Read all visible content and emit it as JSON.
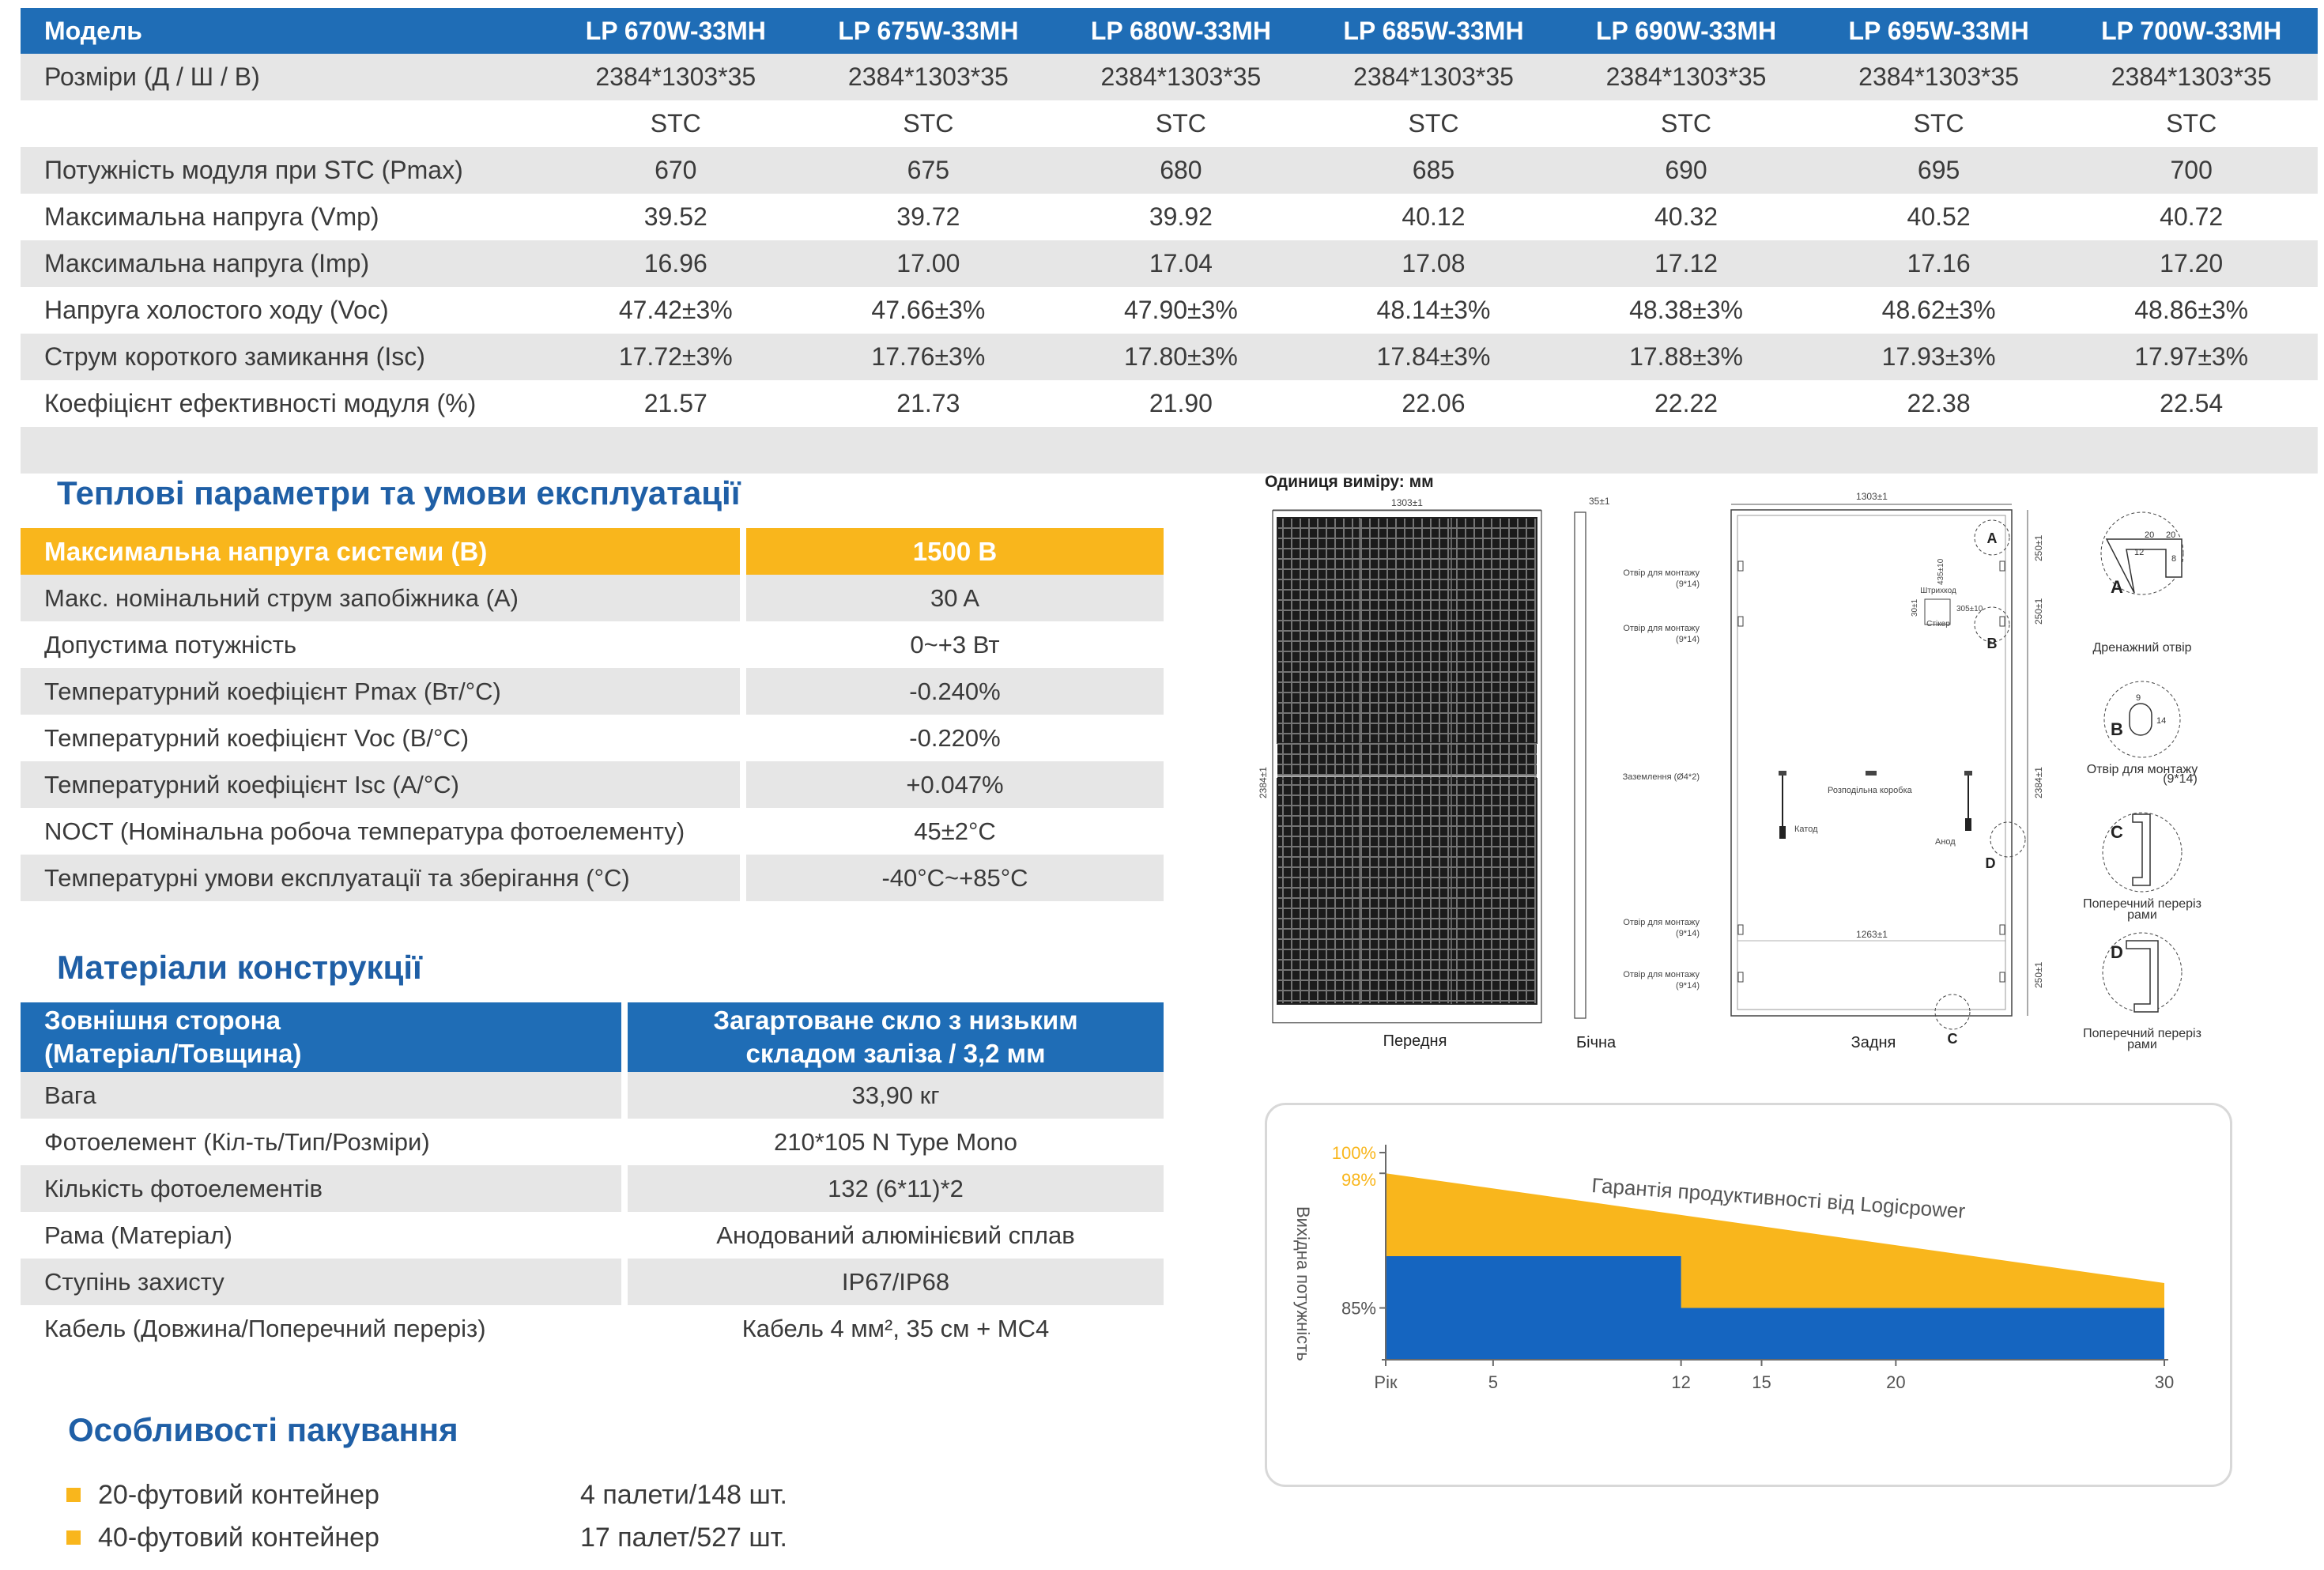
{
  "spec_table": {
    "header": [
      "Модель",
      "LP 670W-33MH",
      "LP 675W-33MH",
      "LP 680W-33MH",
      "LP 685W-33MH",
      "LP 690W-33MH",
      "LP 695W-33MH",
      "LP 700W-33MH"
    ],
    "rows": [
      [
        "Розміри (Д / Ш / В)",
        "2384*1303*35",
        "2384*1303*35",
        "2384*1303*35",
        "2384*1303*35",
        "2384*1303*35",
        "2384*1303*35",
        "2384*1303*35"
      ],
      [
        "",
        "STC",
        "STC",
        "STC",
        "STC",
        "STC",
        "STC",
        "STC"
      ],
      [
        "Потужність модуля при STC (Pmax)",
        "670",
        "675",
        "680",
        "685",
        "690",
        "695",
        "700"
      ],
      [
        "Максимальна напруга (Vmp)",
        "39.52",
        "39.72",
        "39.92",
        "40.12",
        "40.32",
        "40.52",
        "40.72"
      ],
      [
        "Максимальна напруга (Imp)",
        "16.96",
        "17.00",
        "17.04",
        "17.08",
        "17.12",
        "17.16",
        "17.20"
      ],
      [
        "Напруга холостого ходу (Voc)",
        "47.42±3%",
        "47.66±3%",
        "47.90±3%",
        "48.14±3%",
        "48.38±3%",
        "48.62±3%",
        "48.86±3%"
      ],
      [
        "Струм короткого замикання (Isc)",
        "17.72±3%",
        "17.76±3%",
        "17.80±3%",
        "17.84±3%",
        "17.88±3%",
        "17.93±3%",
        "17.97±3%"
      ],
      [
        "Коефіцієнт ефективності модуля (%)",
        "21.57",
        "21.73",
        "21.90",
        "22.06",
        "22.22",
        "22.38",
        "22.54"
      ]
    ]
  },
  "thermal": {
    "title": "Теплові параметри та умови експлуатації",
    "header": [
      "Максимальна напруга системи (В)",
      "1500 В"
    ],
    "rows": [
      [
        "Макс. номінальний струм запобіжника (А)",
        "30 A"
      ],
      [
        "Допустима потужність",
        "0~+3 Вт"
      ],
      [
        "Температурний коефіцієнт Pmax (Вт/°C)",
        "-0.240%"
      ],
      [
        "Температурний коефіцієнт Voc (В/°C)",
        "-0.220%"
      ],
      [
        "Температурний коефіцієнт Isc (А/°C)",
        "+0.047%"
      ],
      [
        "NOCT (Номінальна робоча температура фотоелементу)",
        "45±2°C"
      ],
      [
        "Температурні умови експлуатації та зберігання (°C)",
        "-40°C~+85°C"
      ]
    ]
  },
  "materials": {
    "title": "Матеріали конструкції",
    "header_left": [
      "Зовнішня сторона",
      "(Матеріал/Товщина)"
    ],
    "header_right": [
      "Загартоване скло з низьким",
      "складом заліза / 3,2 мм"
    ],
    "rows": [
      [
        "Вага",
        "33,90 кг"
      ],
      [
        "Фотоелемент (Кіл-ть/Тип/Розміри)",
        "210*105 N Type Mono"
      ],
      [
        "Кількість фотоелементів",
        "132 (6*11)*2"
      ],
      [
        "Рама (Матеріал)",
        "Анодований алюмінієвий сплав"
      ],
      [
        "Ступінь захисту",
        "IP67/IP68"
      ],
      [
        "Кабель (Довжина/Поперечний переріз)",
        "Кабель 4 мм², 35 см + MC4"
      ]
    ]
  },
  "packing": {
    "title": "Особливості пакування",
    "items": [
      {
        "label": "20-футовий контейнер",
        "value": "4 палети/148 шт."
      },
      {
        "label": "40-футовий контейнер",
        "value": "17 палет/527 шт."
      }
    ]
  },
  "drawing": {
    "unit_label": "Одиниця виміру: мм",
    "dim_width": "1303±1",
    "dim_height": "2384±1",
    "dim_thickness": "35±1",
    "dim_mount_bottom": "1263±1",
    "dim_mount_top": "435±10",
    "dim_mount_side": "305±10",
    "dim_250": "250±1",
    "dim_30": "30±1",
    "label_front": "Передня",
    "label_side": "Бічна",
    "label_back": "Задня",
    "mount_hole": "Отвір для монтажу",
    "mount_size": "(9*14)",
    "barcode": "Штрихкод",
    "sticker": "Стікер",
    "ground": "Заземлення (Ø4*2)",
    "junction": "Розподільна коробка",
    "cathode": "Катод",
    "anode": "Анод",
    "letters": [
      "A",
      "B",
      "C",
      "D"
    ],
    "drain": "Дренажний отвір",
    "mount_detail": [
      "Отвір для монтажу",
      "(9*14)"
    ],
    "section": [
      "Поперечний переріз",
      "рами"
    ],
    "detail_dims": [
      "20",
      "20",
      "12",
      "8",
      "9",
      "14"
    ]
  },
  "warranty": {
    "title": "Гарантія продуктивності від Logicpower",
    "ylabel": "Вихідна потужність",
    "y_ticks": [
      "100%",
      "98%",
      "85%"
    ],
    "x_ticks": [
      "Рік",
      "5",
      "12",
      "15",
      "20",
      "30"
    ],
    "colors": {
      "linear": "#f9b61c",
      "standard": "#1565c0"
    }
  },
  "chart_data": {
    "type": "area",
    "title": "Гарантія продуктивності від Logicpower",
    "xlabel": "",
    "ylabel": "Вихідна потужність",
    "x_ticks": [
      "Рік",
      "5",
      "12",
      "15",
      "20",
      "30"
    ],
    "y_ticks": [
      "100%",
      "98%",
      "85%"
    ],
    "series": [
      {
        "x": [
          1,
          30
        ],
        "y": [
          98,
          87.4
        ]
      },
      {
        "x": [
          1,
          12,
          12,
          30
        ],
        "y": [
          90,
          90,
          85,
          85
        ]
      }
    ]
  }
}
